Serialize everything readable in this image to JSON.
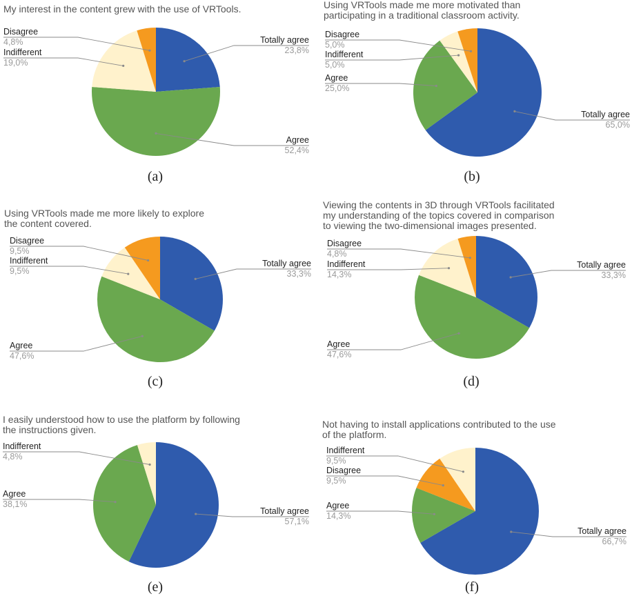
{
  "colors": {
    "Totally agree": "#2f5bad",
    "Agree": "#6aa84f",
    "Indifferent": "#fff2cc",
    "Disagree": "#f59a1f"
  },
  "chart_data": [
    {
      "type": "pie",
      "caption": "(a)",
      "title": [
        "My interest in the content grew with the use of VRTools."
      ],
      "slices": [
        {
          "label": "Totally agree",
          "value": 23.8,
          "value_text": "23,8%"
        },
        {
          "label": "Agree",
          "value": 52.4,
          "value_text": "52,4%"
        },
        {
          "label": "Indifferent",
          "value": 19.0,
          "value_text": "19,0%"
        },
        {
          "label": "Disagree",
          "value": 4.8,
          "value_text": "4,8%"
        }
      ]
    },
    {
      "type": "pie",
      "caption": "(b)",
      "title": [
        "Using VRTools made me more motivated than",
        "participating in a traditional classroom activity."
      ],
      "slices": [
        {
          "label": "Totally agree",
          "value": 65.0,
          "value_text": "65,0%"
        },
        {
          "label": "Agree",
          "value": 25.0,
          "value_text": "25,0%"
        },
        {
          "label": "Indifferent",
          "value": 5.0,
          "value_text": "5,0%"
        },
        {
          "label": "Disagree",
          "value": 5.0,
          "value_text": "5,0%"
        }
      ]
    },
    {
      "type": "pie",
      "caption": "(c)",
      "title": [
        "Using VRTools made me more likely to explore",
        "the content covered."
      ],
      "slices": [
        {
          "label": "Totally agree",
          "value": 33.3,
          "value_text": "33,3%"
        },
        {
          "label": "Agree",
          "value": 47.6,
          "value_text": "47,6%"
        },
        {
          "label": "Indifferent",
          "value": 9.5,
          "value_text": "9,5%"
        },
        {
          "label": "Disagree",
          "value": 9.5,
          "value_text": "9,5%"
        }
      ]
    },
    {
      "type": "pie",
      "caption": "(d)",
      "title": [
        "Viewing the contents in 3D through VRTools facilitated",
        "my understanding of the topics covered in comparison",
        "to viewing the two-dimensional images presented."
      ],
      "slices": [
        {
          "label": "Totally agree",
          "value": 33.3,
          "value_text": "33,3%"
        },
        {
          "label": "Agree",
          "value": 47.6,
          "value_text": "47,6%"
        },
        {
          "label": "Indifferent",
          "value": 14.3,
          "value_text": "14,3%"
        },
        {
          "label": "Disagree",
          "value": 4.8,
          "value_text": "4,8%"
        }
      ]
    },
    {
      "type": "pie",
      "caption": "(e)",
      "title": [
        "I easily understood how to use the platform by following",
        "the instructions given."
      ],
      "slices": [
        {
          "label": "Totally agree",
          "value": 57.1,
          "value_text": "57,1%"
        },
        {
          "label": "Agree",
          "value": 38.1,
          "value_text": "38,1%"
        },
        {
          "label": "Indifferent",
          "value": 4.8,
          "value_text": "4,8%"
        }
      ]
    },
    {
      "type": "pie",
      "caption": "(f)",
      "title": [
        "Not having to install applications contributed to the use",
        "of the platform."
      ],
      "slices": [
        {
          "label": "Totally agree",
          "value": 66.7,
          "value_text": "66,7%"
        },
        {
          "label": "Agree",
          "value": 14.3,
          "value_text": "14,3%"
        },
        {
          "label": "Disagree",
          "value": 9.5,
          "value_text": "9,5%"
        },
        {
          "label": "Indifferent",
          "value": 9.5,
          "value_text": "9,5%"
        }
      ]
    }
  ]
}
